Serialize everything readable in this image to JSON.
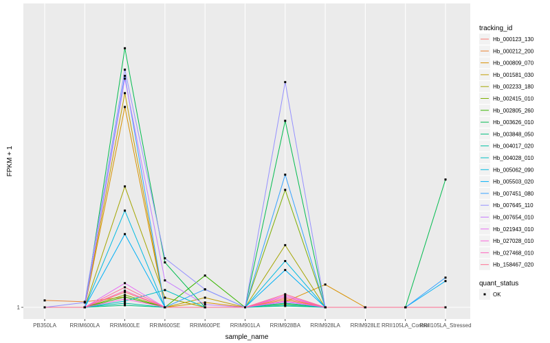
{
  "chart_data": {
    "type": "line",
    "xlabel": "sample_name",
    "ylabel": "FPKM + 1",
    "y_ticks": [
      "1"
    ],
    "categories": [
      "PB350LA",
      "RRIM600LA",
      "RRIM600LE",
      "RRIM600SE",
      "RRIM600PE",
      "RRIM901LA",
      "RRIM928BA",
      "RRIM928LA",
      "RRIM928LE",
      "RRII105LA_Control",
      "RRII105LA_Stressed"
    ],
    "ylim": [
      0,
      42
    ],
    "grid": true,
    "legend_position": "right",
    "legend_title": "tracking_id",
    "series": [
      {
        "name": "Hb_000123_130",
        "color": "#F8766D",
        "values": [
          0,
          0,
          2.2,
          0,
          0,
          0,
          1.3,
          0,
          0,
          0,
          0
        ]
      },
      {
        "name": "Hb_000212_200",
        "color": "#EA8331",
        "values": [
          1,
          0.8,
          1.5,
          0,
          0,
          0,
          1.1,
          0,
          0,
          0,
          0
        ]
      },
      {
        "name": "Hb_000809_070",
        "color": "#D89000",
        "values": [
          0,
          0,
          29,
          0,
          0.7,
          0,
          0.8,
          3.3,
          0,
          0,
          0
        ]
      },
      {
        "name": "Hb_001581_030",
        "color": "#C09B00",
        "values": [
          0,
          0,
          31,
          0,
          1.4,
          0,
          0.6,
          0,
          0,
          0,
          0
        ]
      },
      {
        "name": "Hb_002233_180",
        "color": "#A3A500",
        "values": [
          0,
          0,
          17.5,
          1.4,
          0,
          0,
          9,
          0,
          0,
          0,
          0
        ]
      },
      {
        "name": "Hb_002415_010",
        "color": "#7CAE00",
        "values": [
          0,
          0,
          1.8,
          0,
          0,
          0,
          17,
          0,
          0,
          0,
          0
        ]
      },
      {
        "name": "Hb_002805_260",
        "color": "#39B600",
        "values": [
          0,
          0,
          1.5,
          0,
          4.6,
          0,
          0.5,
          0,
          0,
          0,
          0
        ]
      },
      {
        "name": "Hb_003626_010",
        "color": "#00BB4E",
        "values": [
          0,
          0,
          37.5,
          6.5,
          0,
          0,
          27,
          0,
          0,
          0,
          18.5
        ]
      },
      {
        "name": "Hb_003848_050",
        "color": "#00BF7D",
        "values": [
          0,
          0,
          0.3,
          0,
          0,
          0,
          0.2,
          0,
          0,
          0,
          0
        ]
      },
      {
        "name": "Hb_004017_020",
        "color": "#00C1A3",
        "values": [
          0,
          0,
          0.6,
          0,
          0,
          0,
          0.3,
          0,
          0,
          0,
          0
        ]
      },
      {
        "name": "Hb_004028_010",
        "color": "#00BFC4",
        "values": [
          0,
          0,
          0.9,
          2.5,
          0,
          0,
          0.6,
          0,
          0,
          0,
          0
        ]
      },
      {
        "name": "Hb_005062_090",
        "color": "#00BAE0",
        "values": [
          0,
          0,
          14,
          0,
          0,
          0,
          6.7,
          0,
          0,
          0,
          0
        ]
      },
      {
        "name": "Hb_005503_020",
        "color": "#00B0F6",
        "values": [
          0,
          0,
          10.6,
          0,
          0,
          0,
          5.4,
          0,
          0,
          0,
          3.8
        ]
      },
      {
        "name": "Hb_007451_080",
        "color": "#35A2FF",
        "values": [
          0,
          0,
          33.5,
          0,
          2.6,
          0,
          19.2,
          0,
          0,
          0,
          4.3
        ]
      },
      {
        "name": "Hb_007645_110",
        "color": "#9590FF",
        "values": [
          0,
          0.7,
          34.4,
          7.1,
          2.6,
          0,
          32.6,
          0,
          0,
          0,
          0
        ]
      },
      {
        "name": "Hb_007654_010",
        "color": "#C77CFF",
        "values": [
          0,
          0,
          33.1,
          3.9,
          0.4,
          0,
          0.8,
          0,
          0,
          0,
          0
        ]
      },
      {
        "name": "Hb_021943_010",
        "color": "#E76BF3",
        "values": [
          0,
          0,
          3.5,
          0,
          0,
          0,
          1.7,
          0,
          0,
          0,
          0
        ]
      },
      {
        "name": "Hb_027028_010",
        "color": "#FA62DB",
        "values": [
          0,
          0,
          1.2,
          0,
          0,
          0,
          0.9,
          0,
          0,
          0,
          0
        ]
      },
      {
        "name": "Hb_027468_010",
        "color": "#FF62BC",
        "values": [
          0,
          0,
          2.4,
          0,
          0,
          0,
          1.5,
          0,
          0,
          0,
          0
        ]
      },
      {
        "name": "Hb_158467_020",
        "color": "#FF6C91",
        "values": [
          0,
          0,
          2.9,
          0,
          0,
          0,
          1.9,
          0,
          0,
          0,
          0
        ]
      }
    ],
    "legend2_title": "quant_status",
    "legend2_items": [
      "OK"
    ]
  }
}
